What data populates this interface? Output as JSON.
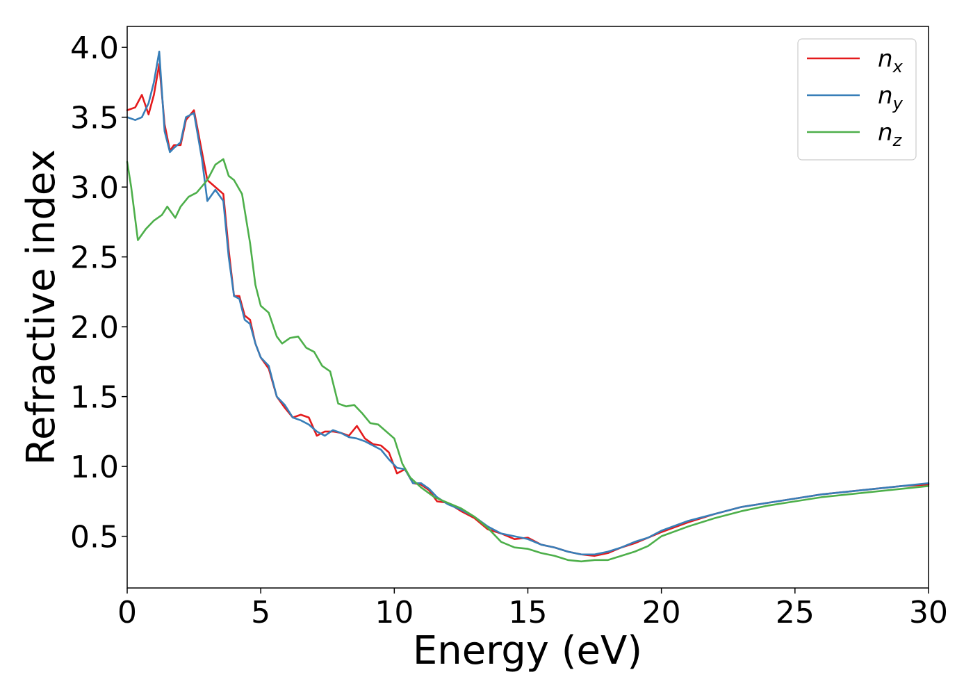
{
  "chart_data": {
    "type": "line",
    "xlabel": "Energy (eV)",
    "ylabel": "Refractive index",
    "xlim": [
      0,
      30
    ],
    "ylim": [
      0.13,
      4.15
    ],
    "xticks": [
      0,
      5,
      10,
      15,
      20,
      25,
      30
    ],
    "yticks": [
      0.5,
      1.0,
      1.5,
      2.0,
      2.5,
      3.0,
      3.5,
      4.0
    ],
    "xtick_labels": [
      "0",
      "5",
      "10",
      "15",
      "20",
      "25",
      "30"
    ],
    "ytick_labels": [
      "0.5",
      "1.0",
      "1.5",
      "2.0",
      "2.5",
      "3.0",
      "3.5",
      "4.0"
    ],
    "grid": false,
    "legend_position": "top-right",
    "series": [
      {
        "name": "n_x",
        "label_main": "n",
        "label_sub": "x",
        "color": "#e41a1c",
        "x": [
          0,
          0.3,
          0.55,
          0.8,
          1.0,
          1.2,
          1.4,
          1.6,
          1.75,
          2.0,
          2.2,
          2.5,
          2.8,
          3.0,
          3.3,
          3.6,
          3.8,
          4.0,
          4.2,
          4.4,
          4.6,
          4.8,
          5.0,
          5.3,
          5.6,
          5.9,
          6.2,
          6.5,
          6.8,
          7.1,
          7.4,
          7.7,
          8.0,
          8.3,
          8.6,
          8.9,
          9.2,
          9.5,
          9.8,
          10.1,
          10.4,
          10.7,
          11.0,
          11.3,
          11.6,
          12.0,
          12.5,
          13.0,
          13.5,
          14.0,
          14.5,
          15.0,
          15.5,
          16.0,
          16.5,
          17.0,
          17.5,
          18.0,
          18.5,
          19.0,
          19.5,
          20.0,
          21.0,
          22.0,
          23.0,
          24.0,
          25.0,
          26.0,
          27.0,
          28.0,
          29.0,
          30.0
        ],
        "y": [
          3.55,
          3.57,
          3.66,
          3.52,
          3.66,
          3.88,
          3.45,
          3.26,
          3.3,
          3.3,
          3.48,
          3.55,
          3.25,
          3.05,
          3.0,
          2.95,
          2.55,
          2.22,
          2.22,
          2.08,
          2.05,
          1.88,
          1.78,
          1.7,
          1.5,
          1.42,
          1.35,
          1.37,
          1.35,
          1.22,
          1.25,
          1.25,
          1.24,
          1.22,
          1.29,
          1.2,
          1.16,
          1.15,
          1.1,
          0.95,
          0.98,
          0.88,
          0.87,
          0.83,
          0.75,
          0.74,
          0.68,
          0.63,
          0.55,
          0.52,
          0.48,
          0.49,
          0.44,
          0.42,
          0.39,
          0.37,
          0.36,
          0.38,
          0.42,
          0.45,
          0.49,
          0.53,
          0.6,
          0.66,
          0.71,
          0.74,
          0.77,
          0.8,
          0.82,
          0.84,
          0.86,
          0.87
        ]
      },
      {
        "name": "n_y",
        "label_main": "n",
        "label_sub": "y",
        "color": "#377eb8",
        "x": [
          0,
          0.3,
          0.55,
          0.8,
          1.0,
          1.2,
          1.4,
          1.6,
          1.75,
          2.0,
          2.2,
          2.5,
          2.8,
          3.0,
          3.3,
          3.6,
          3.8,
          4.0,
          4.2,
          4.4,
          4.6,
          4.8,
          5.0,
          5.3,
          5.6,
          5.9,
          6.2,
          6.5,
          6.8,
          7.1,
          7.4,
          7.7,
          8.0,
          8.3,
          8.6,
          8.9,
          9.2,
          9.5,
          9.8,
          10.1,
          10.4,
          10.7,
          11.0,
          11.3,
          11.6,
          12.0,
          12.5,
          13.0,
          13.5,
          14.0,
          14.5,
          15.0,
          15.5,
          16.0,
          16.5,
          17.0,
          17.5,
          18.0,
          18.5,
          19.0,
          19.5,
          20.0,
          21.0,
          22.0,
          23.0,
          24.0,
          25.0,
          26.0,
          27.0,
          28.0,
          29.0,
          30.0
        ],
        "y": [
          3.5,
          3.48,
          3.5,
          3.6,
          3.75,
          3.97,
          3.4,
          3.25,
          3.28,
          3.32,
          3.5,
          3.53,
          3.2,
          2.9,
          2.98,
          2.9,
          2.5,
          2.22,
          2.2,
          2.05,
          2.02,
          1.88,
          1.78,
          1.72,
          1.5,
          1.44,
          1.35,
          1.33,
          1.3,
          1.25,
          1.22,
          1.26,
          1.24,
          1.21,
          1.2,
          1.18,
          1.15,
          1.12,
          1.05,
          0.99,
          0.98,
          0.88,
          0.88,
          0.84,
          0.78,
          0.73,
          0.69,
          0.64,
          0.57,
          0.52,
          0.5,
          0.48,
          0.44,
          0.42,
          0.39,
          0.37,
          0.37,
          0.39,
          0.42,
          0.46,
          0.49,
          0.54,
          0.61,
          0.66,
          0.71,
          0.74,
          0.77,
          0.8,
          0.82,
          0.84,
          0.86,
          0.88
        ]
      },
      {
        "name": "n_z",
        "label_main": "n",
        "label_sub": "z",
        "color": "#4daf4a",
        "x": [
          0,
          0.15,
          0.4,
          0.7,
          1.0,
          1.3,
          1.5,
          1.8,
          2.0,
          2.3,
          2.6,
          3.0,
          3.3,
          3.6,
          3.8,
          4.0,
          4.3,
          4.6,
          4.8,
          5.0,
          5.3,
          5.6,
          5.8,
          6.1,
          6.4,
          6.7,
          7.0,
          7.3,
          7.6,
          7.9,
          8.2,
          8.5,
          8.8,
          9.1,
          9.4,
          9.7,
          10.0,
          10.3,
          10.6,
          11.0,
          11.5,
          12.0,
          12.5,
          13.0,
          13.5,
          14.0,
          14.5,
          15.0,
          15.5,
          16.0,
          16.5,
          17.0,
          17.5,
          18.0,
          18.5,
          19.0,
          19.5,
          20.0,
          21.0,
          22.0,
          23.0,
          24.0,
          25.0,
          26.0,
          27.0,
          28.0,
          29.0,
          30.0
        ],
        "y": [
          3.18,
          3.0,
          2.62,
          2.7,
          2.76,
          2.8,
          2.86,
          2.78,
          2.86,
          2.93,
          2.96,
          3.05,
          3.16,
          3.2,
          3.08,
          3.05,
          2.95,
          2.6,
          2.3,
          2.15,
          2.1,
          1.93,
          1.88,
          1.92,
          1.93,
          1.85,
          1.82,
          1.72,
          1.68,
          1.45,
          1.43,
          1.44,
          1.38,
          1.31,
          1.3,
          1.25,
          1.2,
          1.02,
          0.92,
          0.85,
          0.78,
          0.74,
          0.7,
          0.64,
          0.56,
          0.46,
          0.42,
          0.41,
          0.38,
          0.36,
          0.33,
          0.32,
          0.33,
          0.33,
          0.36,
          0.39,
          0.43,
          0.5,
          0.57,
          0.63,
          0.68,
          0.72,
          0.75,
          0.78,
          0.8,
          0.82,
          0.84,
          0.86
        ]
      }
    ]
  }
}
